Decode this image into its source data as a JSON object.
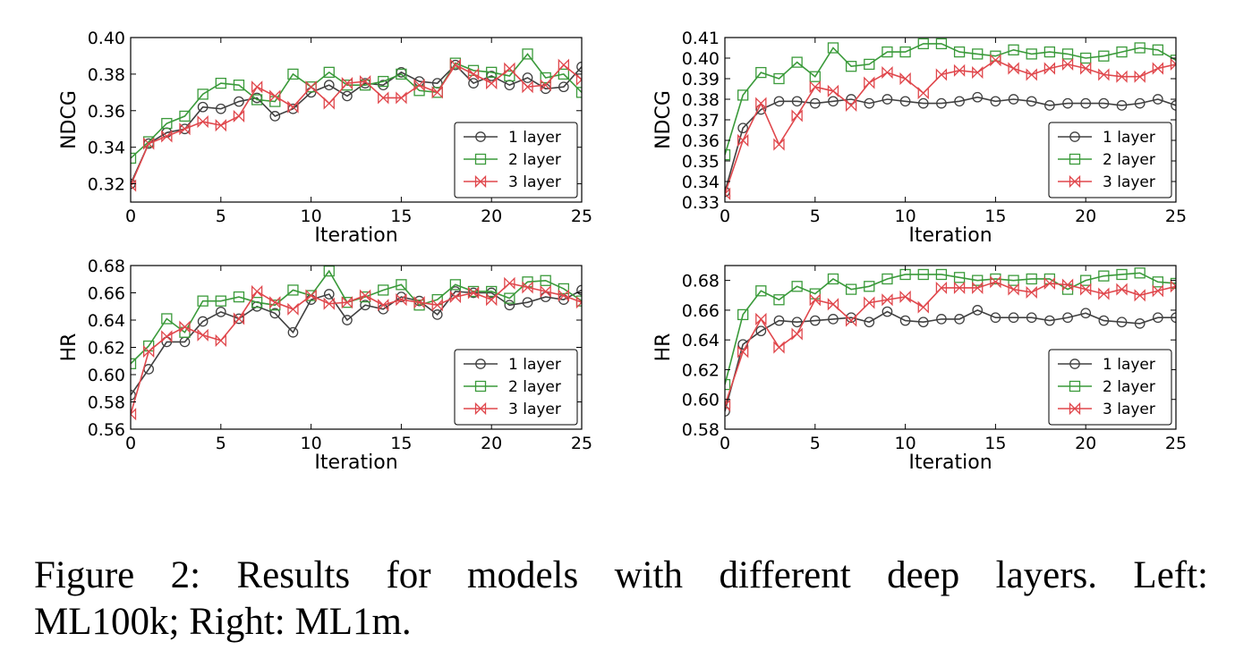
{
  "caption": {
    "line1": "Figure 2:  Results for models with different deep layers.  Left:",
    "line2": "ML100k; Right: ML1m."
  },
  "series_styles": [
    {
      "name": "1 layer",
      "color": "#404040",
      "marker": "circle"
    },
    {
      "name": "2 layer",
      "color": "#3a9a3a",
      "marker": "square"
    },
    {
      "name": "3 layer",
      "color": "#e0474c",
      "marker": "bowtie"
    }
  ],
  "chart_data": [
    {
      "type": "line",
      "title": "",
      "xlabel": "Iteration",
      "ylabel": "NDCG",
      "xlim": [
        0,
        25
      ],
      "ylim": [
        0.31,
        0.4
      ],
      "xticks": [
        0,
        5,
        10,
        15,
        20,
        25
      ],
      "yticks": [
        0.32,
        0.34,
        0.36,
        0.38,
        0.4
      ],
      "ytick_labels": [
        "0.32",
        "0.34",
        "0.36",
        "0.38",
        "0.40"
      ],
      "legend": "lower-right",
      "x": [
        0,
        1,
        2,
        3,
        4,
        5,
        6,
        7,
        8,
        9,
        10,
        11,
        12,
        13,
        14,
        15,
        16,
        17,
        18,
        19,
        20,
        21,
        22,
        23,
        24,
        25
      ],
      "series": [
        {
          "name": "1 layer",
          "values": [
            0.32,
            0.342,
            0.348,
            0.35,
            0.362,
            0.361,
            0.365,
            0.367,
            0.357,
            0.361,
            0.37,
            0.374,
            0.368,
            0.375,
            0.374,
            0.381,
            0.376,
            0.375,
            0.385,
            0.375,
            0.379,
            0.374,
            0.378,
            0.372,
            0.373,
            0.384
          ]
        },
        {
          "name": "2 layer",
          "values": [
            0.334,
            0.343,
            0.353,
            0.357,
            0.369,
            0.375,
            0.374,
            0.366,
            0.365,
            0.38,
            0.373,
            0.381,
            0.374,
            0.374,
            0.376,
            0.38,
            0.371,
            0.37,
            0.386,
            0.382,
            0.381,
            0.379,
            0.391,
            0.378,
            0.38,
            0.37
          ]
        },
        {
          "name": "3 layer",
          "values": [
            0.319,
            0.342,
            0.346,
            0.35,
            0.354,
            0.352,
            0.357,
            0.373,
            0.368,
            0.362,
            0.373,
            0.364,
            0.375,
            0.376,
            0.367,
            0.367,
            0.374,
            0.37,
            0.385,
            0.38,
            0.375,
            0.383,
            0.373,
            0.374,
            0.385,
            0.377
          ]
        }
      ]
    },
    {
      "type": "line",
      "title": "",
      "xlabel": "Iteration",
      "ylabel": "NDCG",
      "xlim": [
        0,
        25
      ],
      "ylim": [
        0.33,
        0.41
      ],
      "xticks": [
        0,
        5,
        10,
        15,
        20,
        25
      ],
      "yticks": [
        0.33,
        0.34,
        0.35,
        0.36,
        0.37,
        0.38,
        0.39,
        0.4,
        0.41
      ],
      "ytick_labels": [
        "0.33",
        "0.34",
        "0.35",
        "0.36",
        "0.37",
        "0.38",
        "0.39",
        "0.40",
        "0.41"
      ],
      "legend": "lower-right",
      "x": [
        0,
        1,
        2,
        3,
        4,
        5,
        6,
        7,
        8,
        9,
        10,
        11,
        12,
        13,
        14,
        15,
        16,
        17,
        18,
        19,
        20,
        21,
        22,
        23,
        24,
        25
      ],
      "series": [
        {
          "name": "1 layer",
          "values": [
            0.335,
            0.366,
            0.375,
            0.379,
            0.379,
            0.378,
            0.379,
            0.38,
            0.378,
            0.38,
            0.379,
            0.378,
            0.378,
            0.379,
            0.381,
            0.379,
            0.38,
            0.379,
            0.377,
            0.378,
            0.378,
            0.378,
            0.377,
            0.378,
            0.38,
            0.377
          ]
        },
        {
          "name": "2 layer",
          "values": [
            0.353,
            0.382,
            0.393,
            0.39,
            0.398,
            0.391,
            0.405,
            0.396,
            0.397,
            0.403,
            0.403,
            0.407,
            0.407,
            0.403,
            0.402,
            0.401,
            0.404,
            0.402,
            0.403,
            0.402,
            0.4,
            0.401,
            0.403,
            0.405,
            0.404,
            0.399
          ]
        },
        {
          "name": "3 layer",
          "values": [
            0.334,
            0.36,
            0.378,
            0.358,
            0.372,
            0.386,
            0.384,
            0.377,
            0.388,
            0.393,
            0.39,
            0.383,
            0.392,
            0.394,
            0.393,
            0.399,
            0.395,
            0.392,
            0.395,
            0.397,
            0.395,
            0.392,
            0.391,
            0.391,
            0.395,
            0.397
          ]
        }
      ]
    },
    {
      "type": "line",
      "title": "",
      "xlabel": "Iteration",
      "ylabel": "HR",
      "xlim": [
        0,
        25
      ],
      "ylim": [
        0.56,
        0.68
      ],
      "xticks": [
        0,
        5,
        10,
        15,
        20,
        25
      ],
      "yticks": [
        0.56,
        0.58,
        0.6,
        0.62,
        0.64,
        0.66,
        0.68
      ],
      "ytick_labels": [
        "0.56",
        "0.58",
        "0.60",
        "0.62",
        "0.64",
        "0.66",
        "0.68"
      ],
      "legend": "lower-right",
      "x": [
        0,
        1,
        2,
        3,
        4,
        5,
        6,
        7,
        8,
        9,
        10,
        11,
        12,
        13,
        14,
        15,
        16,
        17,
        18,
        19,
        20,
        21,
        22,
        23,
        24,
        25
      ],
      "series": [
        {
          "name": "1 layer",
          "values": [
            0.585,
            0.604,
            0.624,
            0.624,
            0.639,
            0.646,
            0.641,
            0.65,
            0.645,
            0.631,
            0.655,
            0.659,
            0.64,
            0.651,
            0.648,
            0.657,
            0.654,
            0.644,
            0.661,
            0.66,
            0.66,
            0.651,
            0.653,
            0.657,
            0.655,
            0.662
          ]
        },
        {
          "name": "2 layer",
          "values": [
            0.608,
            0.621,
            0.641,
            0.631,
            0.654,
            0.654,
            0.657,
            0.653,
            0.651,
            0.662,
            0.658,
            0.676,
            0.653,
            0.657,
            0.662,
            0.666,
            0.651,
            0.655,
            0.666,
            0.661,
            0.661,
            0.656,
            0.668,
            0.669,
            0.663,
            0.654
          ]
        },
        {
          "name": "3 layer",
          "values": [
            0.571,
            0.617,
            0.628,
            0.635,
            0.629,
            0.625,
            0.641,
            0.661,
            0.653,
            0.648,
            0.658,
            0.652,
            0.653,
            0.658,
            0.651,
            0.655,
            0.653,
            0.651,
            0.657,
            0.66,
            0.655,
            0.667,
            0.664,
            0.661,
            0.658,
            0.653
          ]
        }
      ]
    },
    {
      "type": "line",
      "title": "",
      "xlabel": "Iteration",
      "ylabel": "HR",
      "xlim": [
        0,
        25
      ],
      "ylim": [
        0.58,
        0.69
      ],
      "xticks": [
        0,
        5,
        10,
        15,
        20,
        25
      ],
      "yticks": [
        0.58,
        0.6,
        0.62,
        0.64,
        0.66,
        0.68
      ],
      "ytick_labels": [
        "0.58",
        "0.60",
        "0.62",
        "0.64",
        "0.66",
        "0.68"
      ],
      "legend": "lower-right",
      "x": [
        0,
        1,
        2,
        3,
        4,
        5,
        6,
        7,
        8,
        9,
        10,
        11,
        12,
        13,
        14,
        15,
        16,
        17,
        18,
        19,
        20,
        21,
        22,
        23,
        24,
        25
      ],
      "series": [
        {
          "name": "1 layer",
          "values": [
            0.592,
            0.637,
            0.646,
            0.653,
            0.652,
            0.653,
            0.654,
            0.655,
            0.652,
            0.659,
            0.653,
            0.652,
            0.654,
            0.654,
            0.66,
            0.655,
            0.655,
            0.655,
            0.653,
            0.655,
            0.658,
            0.653,
            0.652,
            0.651,
            0.655,
            0.655
          ]
        },
        {
          "name": "2 layer",
          "values": [
            0.61,
            0.657,
            0.673,
            0.667,
            0.676,
            0.671,
            0.681,
            0.674,
            0.676,
            0.681,
            0.684,
            0.684,
            0.684,
            0.682,
            0.68,
            0.681,
            0.68,
            0.681,
            0.681,
            0.674,
            0.68,
            0.683,
            0.684,
            0.685,
            0.679,
            0.678
          ]
        },
        {
          "name": "3 layer",
          "values": [
            0.596,
            0.632,
            0.654,
            0.635,
            0.644,
            0.667,
            0.664,
            0.653,
            0.665,
            0.667,
            0.669,
            0.662,
            0.675,
            0.675,
            0.675,
            0.679,
            0.674,
            0.672,
            0.678,
            0.677,
            0.674,
            0.671,
            0.674,
            0.67,
            0.673,
            0.676
          ]
        }
      ]
    }
  ]
}
